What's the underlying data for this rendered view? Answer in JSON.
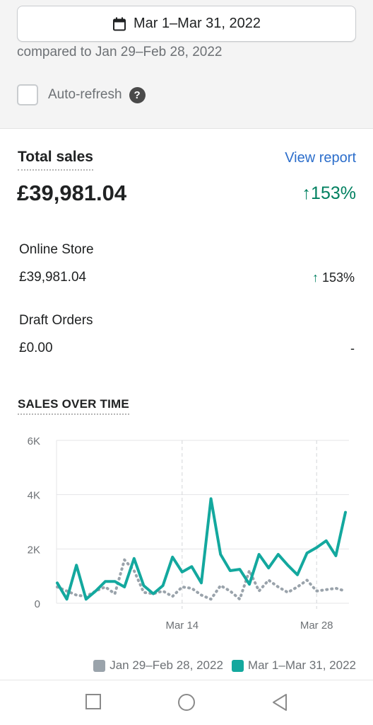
{
  "date_range": {
    "label": "Mar 1–Mar 31, 2022",
    "compared_label": "compared to Jan 29–Feb 28, 2022",
    "icon": "calendar-icon"
  },
  "auto_refresh": {
    "label": "Auto-refresh",
    "checked": false,
    "help_icon": "help-icon"
  },
  "total_sales": {
    "title": "Total sales",
    "view_report": "View report",
    "amount": "£39,981.04",
    "change": "↑153%"
  },
  "breakdown": [
    {
      "label": "Online Store",
      "amount": "£39,981.04",
      "change_arrow": "↑",
      "change": "153%"
    },
    {
      "label": "Draft Orders",
      "amount": "£0.00",
      "change": "-"
    }
  ],
  "colors": {
    "current": "#13a89e",
    "previous": "#9aa3ab",
    "positive": "#008060",
    "link": "#2c6ecb"
  },
  "chart_data": {
    "type": "line",
    "title": "SALES OVER TIME",
    "y_ticks": [
      "6K",
      "4K",
      "2K",
      "0"
    ],
    "ylim": [
      0,
      6000
    ],
    "x_ticks": [
      {
        "label": "Mar 14",
        "index": 13
      },
      {
        "label": "Mar 28",
        "index": 27
      }
    ],
    "num_points": 31,
    "series": [
      {
        "name": "Jan 29–Feb 28, 2022",
        "style": "dotted",
        "values": [
          600,
          450,
          300,
          250,
          450,
          600,
          350,
          1600,
          1200,
          400,
          350,
          450,
          250,
          600,
          550,
          300,
          150,
          650,
          450,
          150,
          1200,
          450,
          850,
          600,
          400,
          600,
          850,
          450,
          500,
          550,
          450
        ]
      },
      {
        "name": "Mar 1–Mar 31, 2022",
        "style": "solid",
        "values": [
          750,
          150,
          1400,
          150,
          450,
          800,
          800,
          600,
          1650,
          650,
          350,
          650,
          1700,
          1150,
          1350,
          750,
          3850,
          1800,
          1200,
          1250,
          700,
          1800,
          1300,
          1800,
          1400,
          1050,
          1850,
          2050,
          2300,
          1750,
          3350
        ]
      }
    ]
  },
  "legend": [
    {
      "label": "Jan 29–Feb 28, 2022",
      "color": "#9aa3ab"
    },
    {
      "label": "Mar 1–Mar 31, 2022",
      "color": "#13a89e"
    }
  ],
  "nav": [
    {
      "icon": "recent-apps-icon"
    },
    {
      "icon": "home-icon"
    },
    {
      "icon": "back-icon"
    }
  ]
}
